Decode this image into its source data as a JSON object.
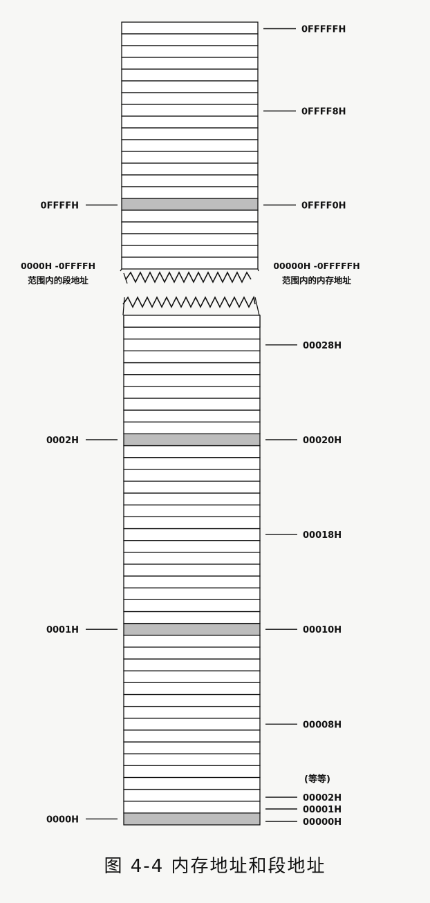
{
  "memory_labels_top": [
    "0FFFFFH",
    "0FFFF8H",
    "0FFFF0H"
  ],
  "memory_labels_bottom": [
    "00028H",
    "00020H",
    "00018H",
    "00010H",
    "00008H",
    "00002H",
    "00001H",
    "00000H"
  ],
  "segment_labels": [
    "0FFFFH",
    "0002H",
    "0001H",
    "0000H"
  ],
  "break_note_left": [
    "0000H -0FFFFH",
    "范围内的段地址"
  ],
  "break_note_right": [
    "00000H -0FFFFFH",
    "范围内的内存地址"
  ],
  "etc_label": "(等等)",
  "caption": "图 4-4   内存地址和段地址",
  "colors": {
    "stroke": "#111111",
    "highlight": "#bdbdbd",
    "cell": "#ffffff"
  }
}
